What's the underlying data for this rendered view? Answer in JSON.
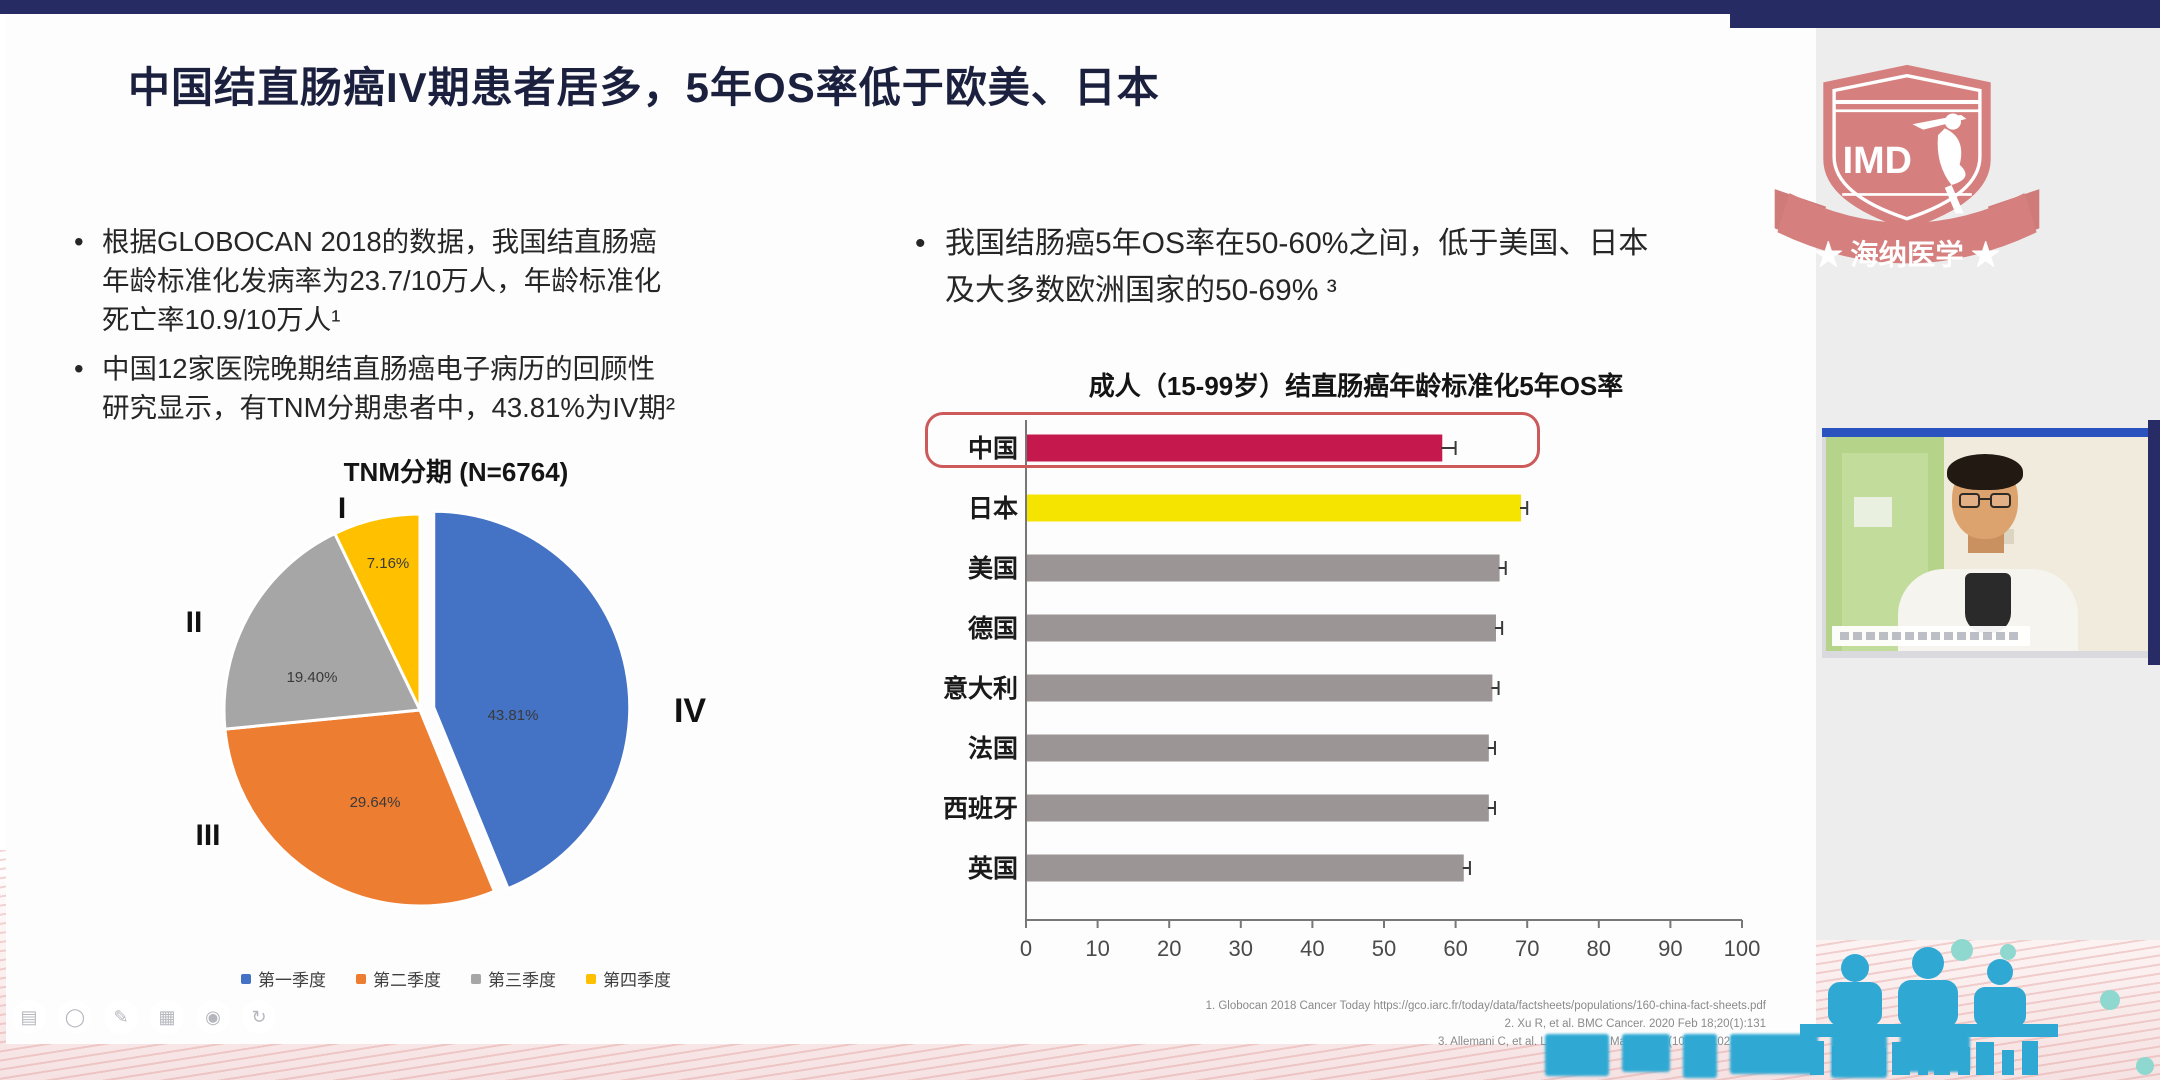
{
  "slide": {
    "title": "中国结直肠癌IV期患者居多，5年OS率低于欧美、日本",
    "left_bullets": [
      "根据GLOBOCAN 2018的数据，我国结直肠癌年龄标准化发病率为23.7/10万人，年龄标准化死亡率10.9/10万人¹",
      "中国12家医院晚期结直肠癌电子病历的回顾性研究显示，有TNM分期患者中，43.81%为IV期²"
    ],
    "right_bullet": "我国结肠癌5年OS率在50-60%之间，低于美国、日本及大多数欧洲国家的50-69% ³",
    "references": [
      "1.    Globocan 2018 Cancer Today  https://gco.iarc.fr/today/data/factsheets/populations/160-china-fact-sheets.pdf",
      "2.    Xu R, et al. BMC Cancer. 2020 Feb 18;20(1):131",
      "3.    Allemani C, et al. Lancet. 2018 Mar 17;391(10125):1023-1075"
    ]
  },
  "chart_data": [
    {
      "type": "pie",
      "title": "TNM分期 (N=6764)",
      "labels": [
        "IV",
        "III",
        "II",
        "I"
      ],
      "values": [
        43.81,
        29.64,
        19.4,
        7.16
      ],
      "value_labels": [
        "43.81%",
        "29.64%",
        "19.40%",
        "7.16%"
      ],
      "colors": [
        "#4472c4",
        "#ed7d31",
        "#a6a6a6",
        "#ffc000"
      ],
      "explode_index": 0,
      "legend_position": "bottom",
      "legend": [
        {
          "label": "第一季度",
          "color": "#4472c4"
        },
        {
          "label": "第二季度",
          "color": "#ed7d31"
        },
        {
          "label": "第三季度",
          "color": "#a6a6a6"
        },
        {
          "label": "第四季度",
          "color": "#ffc000"
        }
      ]
    },
    {
      "type": "bar",
      "orientation": "horizontal",
      "title": "成人（15-99岁）结直肠癌年龄标准化5年OS率",
      "categories": [
        "中国",
        "日本",
        "美国",
        "德国",
        "意大利",
        "法国",
        "西班牙",
        "英国"
      ],
      "values": [
        58,
        69,
        66,
        65.5,
        65,
        64.5,
        64.5,
        61
      ],
      "errors": [
        2,
        1,
        1,
        1,
        1,
        1,
        1,
        1
      ],
      "bar_colors": [
        "#c5194e",
        "#f5e400",
        "#9b9595",
        "#9b9595",
        "#9b9595",
        "#9b9595",
        "#9b9595",
        "#9b9595"
      ],
      "xlim": [
        0,
        100
      ],
      "xticks": [
        0,
        10,
        20,
        30,
        40,
        50,
        60,
        70,
        80,
        90,
        100
      ],
      "highlighted_category": "中国",
      "highlight_color": "#cc5a5a"
    }
  ],
  "logo": {
    "acronym": "IMD",
    "name": "海纳医学",
    "decor": "★ 海纳医学 ★",
    "color": "#d5807f"
  },
  "toolbar": {
    "glyphs": [
      "▤",
      "◯",
      "✎",
      "▦",
      "◉",
      "↻"
    ]
  },
  "colors": {
    "topbar": "#262b63",
    "slide_bg": "#fdfdfd",
    "gray_panel": "#ededed",
    "china_bar": "#c5194e",
    "japan_bar": "#f5e400",
    "gray_bar": "#9b9595",
    "teal_graphic": "#2fa9d3"
  }
}
